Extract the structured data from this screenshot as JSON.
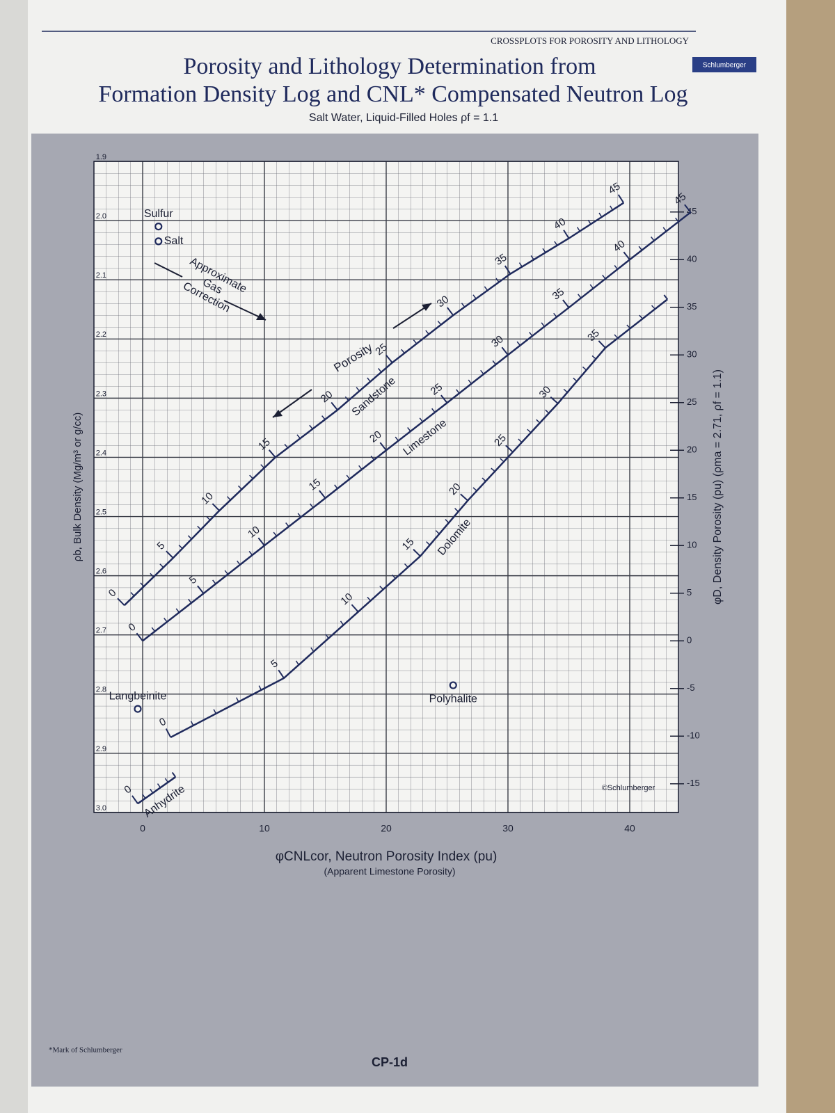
{
  "page": {
    "header": "CROSSPLOTS FOR POROSITY AND LITHOLOGY",
    "brand": "Schlumberger",
    "footnote": "*Mark of Schlumberger",
    "page_number": "CP-1d"
  },
  "chart_data": {
    "type": "line",
    "title": [
      "Porosity and Lithology Determination from",
      "Formation Density Log and CNL* Compensated Neutron Log"
    ],
    "subtitle": "Salt Water, Liquid-Filled Holes ρf = 1.1",
    "x_label": "φCNLcor, Neutron Porosity Index (pu)",
    "x_sublabel": "(Apparent Limestone Porosity)",
    "y_label": "ρb, Bulk Density (Mg/m³ or g/cc)",
    "y2_label": "φD, Density Porosity (pu) (ρma = 2.71, ρf = 1.1)",
    "xlim": [
      -4,
      44
    ],
    "xticks": [
      0,
      10,
      20,
      30,
      40
    ],
    "ylim": [
      3,
      1.9
    ],
    "yticks": [
      1.9,
      {
        "value": 2,
        "label": "2.0"
      },
      2.1,
      2.2,
      2.3,
      2.4,
      2.5,
      2.6,
      2.7,
      2.8,
      2.9,
      {
        "value": 3,
        "label": "3.0"
      }
    ],
    "y2lim": [
      -18.01,
      50.31
    ],
    "y2ticks": [
      -15,
      -10,
      -5,
      0,
      5,
      10,
      15,
      20,
      25,
      30,
      35,
      40,
      45
    ],
    "grid": true,
    "minor_grid_step": {
      "x": 1,
      "y": 0.02
    },
    "series": [
      {
        "name": "Sandstone",
        "color": "#1f2a5c",
        "x": [
          -1.5,
          2.5,
          6.3,
          10.9,
          16.0,
          20.5,
          25.5,
          30.2,
          35.0,
          39.5
        ],
        "values": [
          2.65,
          2.57,
          2.49,
          2.4,
          2.32,
          2.24,
          2.16,
          2.09,
          2.03,
          1.97
        ],
        "porosity": [
          0,
          5,
          10,
          15,
          20,
          25,
          30,
          35,
          40,
          45
        ]
      },
      {
        "name": "Limestone",
        "color": "#1f2a5c",
        "x": [
          0,
          5,
          10,
          15,
          20,
          25,
          30,
          35,
          40,
          45
        ],
        "values": [
          2.71,
          2.63,
          2.549,
          2.469,
          2.388,
          2.308,
          2.227,
          2.147,
          2.066,
          1.986
        ],
        "porosity": [
          0,
          5,
          10,
          15,
          20,
          25,
          30,
          35,
          40,
          45
        ]
      },
      {
        "name": "Dolomite",
        "color": "#1f2a5c",
        "x": [
          2.3,
          11.6,
          17.7,
          22.8,
          26.7,
          30.4,
          34.1,
          38.0,
          43.1
        ],
        "values": [
          2.873,
          2.773,
          2.661,
          2.567,
          2.473,
          2.391,
          2.309,
          2.215,
          2.133
        ],
        "porosity": [
          0,
          5,
          10,
          15,
          20,
          25,
          30,
          35,
          null
        ]
      },
      {
        "name": "Anhydrite",
        "color": "#1f2a5c",
        "x": [
          -0.4,
          2.7
        ],
        "values": [
          2.985,
          2.94
        ],
        "porosity": [
          0,
          null
        ]
      }
    ],
    "markers": [
      {
        "name": "Sulfur",
        "x": 1.3,
        "y": 2.01,
        "label_position": "above"
      },
      {
        "name": "Salt",
        "x": 1.3,
        "y": 2.035,
        "label_position": "right"
      },
      {
        "name": "Langbeinite",
        "x": -0.4,
        "y": 2.825,
        "label_position": "above"
      },
      {
        "name": "Polyhalite",
        "x": 25.5,
        "y": 2.785,
        "label_position": "below"
      }
    ],
    "annotations": {
      "gas_correction": [
        "Approximate",
        "Gas",
        "Correction"
      ],
      "porosity_arrow": "Porosity",
      "copyright": "©Schlumberger"
    }
  }
}
